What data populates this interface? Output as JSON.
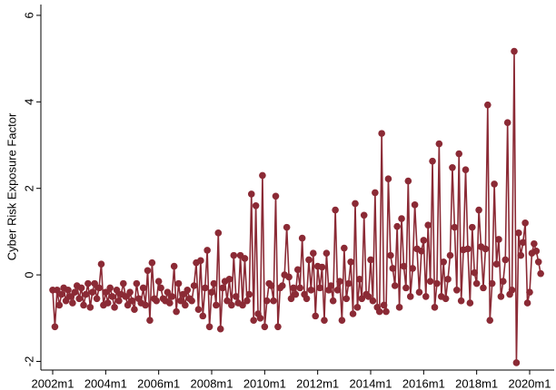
{
  "chart_data": {
    "type": "line",
    "y_label": "Cyber Risk Exposure Factor",
    "color": "#8b2a35",
    "ylim": [
      -2.2,
      6.25
    ],
    "yticks": [
      -2,
      0,
      2,
      4,
      6
    ],
    "grid": false,
    "categories": [
      "2002m1",
      null,
      null,
      null,
      null,
      null,
      null,
      null,
      null,
      null,
      null,
      null,
      null,
      null,
      null,
      null,
      null,
      null,
      null,
      null,
      null,
      null,
      null,
      null,
      "2004m1",
      null,
      null,
      null,
      null,
      null,
      null,
      null,
      null,
      null,
      null,
      null,
      null,
      null,
      null,
      null,
      null,
      null,
      null,
      null,
      null,
      null,
      null,
      null,
      "2006m1",
      null,
      null,
      null,
      null,
      null,
      null,
      null,
      null,
      null,
      null,
      null,
      null,
      null,
      null,
      null,
      null,
      null,
      null,
      null,
      null,
      null,
      null,
      null,
      "2008m1",
      null,
      null,
      null,
      null,
      null,
      null,
      null,
      null,
      null,
      null,
      null,
      null,
      null,
      null,
      null,
      null,
      null,
      null,
      null,
      null,
      null,
      null,
      null,
      "2010m1",
      null,
      null,
      null,
      null,
      null,
      null,
      null,
      null,
      null,
      null,
      null,
      null,
      null,
      null,
      null,
      null,
      null,
      null,
      null,
      null,
      null,
      null,
      null,
      "2012m1",
      null,
      null,
      null,
      null,
      null,
      null,
      null,
      null,
      null,
      null,
      null,
      null,
      null,
      null,
      null,
      null,
      null,
      null,
      null,
      null,
      null,
      null,
      null,
      "2014m1",
      null,
      null,
      null,
      null,
      null,
      null,
      null,
      null,
      null,
      null,
      null,
      null,
      null,
      null,
      null,
      null,
      null,
      null,
      null,
      null,
      null,
      null,
      null,
      "2016m1",
      null,
      null,
      null,
      null,
      null,
      null,
      null,
      null,
      null,
      null,
      null,
      null,
      null,
      null,
      null,
      null,
      null,
      null,
      null,
      null,
      null,
      null,
      null,
      "2018m1",
      null,
      null,
      null,
      null,
      null,
      null,
      null,
      null,
      null,
      null,
      null,
      null,
      null,
      null,
      null,
      null,
      null,
      null,
      null,
      null,
      null,
      null,
      null,
      "2020m1",
      null,
      null,
      null,
      null,
      null
    ],
    "values": [
      -0.35,
      -1.2,
      -0.35,
      -0.7,
      -0.45,
      -0.3,
      -0.6,
      -0.35,
      -0.5,
      -0.65,
      -0.4,
      -0.25,
      -0.55,
      -0.3,
      -0.7,
      -0.45,
      -0.2,
      -0.75,
      -0.4,
      -0.2,
      -0.55,
      -0.3,
      0.25,
      -0.7,
      -0.4,
      -0.65,
      -0.3,
      -0.5,
      -0.75,
      -0.35,
      -0.6,
      -0.45,
      -0.2,
      -0.5,
      -0.7,
      -0.4,
      -0.6,
      -0.8,
      -0.2,
      -0.55,
      -0.65,
      -0.3,
      -0.7,
      0.1,
      -1.05,
      0.28,
      -0.55,
      -0.6,
      -0.15,
      -0.3,
      -0.55,
      -0.6,
      -0.4,
      -0.65,
      -0.5,
      0.2,
      -0.85,
      -0.2,
      -0.6,
      -0.45,
      -0.7,
      -0.35,
      -0.55,
      -0.6,
      -0.25,
      0.28,
      -0.8,
      0.33,
      -0.95,
      -0.3,
      0.57,
      -1.2,
      -0.4,
      -0.2,
      -0.7,
      0.97,
      -1.25,
      -0.3,
      -0.15,
      -0.6,
      -0.1,
      -0.7,
      0.45,
      -0.5,
      -0.65,
      0.45,
      -0.7,
      0.38,
      -0.6,
      -0.45,
      1.87,
      -1.05,
      1.6,
      -0.9,
      -1.0,
      2.3,
      -1.2,
      -0.6,
      -0.2,
      -0.25,
      -0.6,
      1.82,
      -1.2,
      -0.3,
      -0.25,
      0.0,
      1.1,
      -0.05,
      -0.55,
      -0.3,
      -0.45,
      0.12,
      -0.3,
      0.85,
      -0.45,
      -0.55,
      0.35,
      -0.35,
      0.5,
      -0.95,
      0.2,
      -0.3,
      0.18,
      -1.05,
      0.5,
      -0.35,
      -0.25,
      -0.6,
      1.5,
      -0.35,
      -0.15,
      -1.05,
      0.62,
      -0.55,
      -0.2,
      0.3,
      -0.9,
      1.65,
      -0.75,
      -0.1,
      -0.55,
      1.38,
      -0.45,
      -0.5,
      0.35,
      -0.6,
      1.9,
      -0.75,
      -0.85,
      3.27,
      -0.7,
      -0.85,
      2.22,
      0.45,
      0.15,
      -0.25,
      1.12,
      -0.75,
      1.3,
      0.2,
      -0.3,
      2.17,
      -0.5,
      0.15,
      1.62,
      0.6,
      -0.4,
      0.55,
      0.8,
      -0.5,
      1.15,
      -0.15,
      2.63,
      -0.75,
      -0.2,
      3.03,
      -0.5,
      0.3,
      -0.55,
      -0.1,
      0.45,
      2.48,
      1.1,
      -0.35,
      2.8,
      -0.6,
      0.58,
      2.43,
      0.6,
      -0.65,
      1.1,
      0.05,
      -0.2,
      1.5,
      0.65,
      -0.3,
      0.6,
      3.93,
      -1.05,
      -0.2,
      2.1,
      0.25,
      0.82,
      -0.5,
      -0.15,
      0.35,
      3.52,
      -0.45,
      -0.35,
      5.17,
      -2.03,
      0.97,
      0.45,
      0.75,
      1.2,
      -0.65,
      -0.4,
      0.5,
      0.72,
      0.55,
      0.3,
      0.03
    ]
  }
}
